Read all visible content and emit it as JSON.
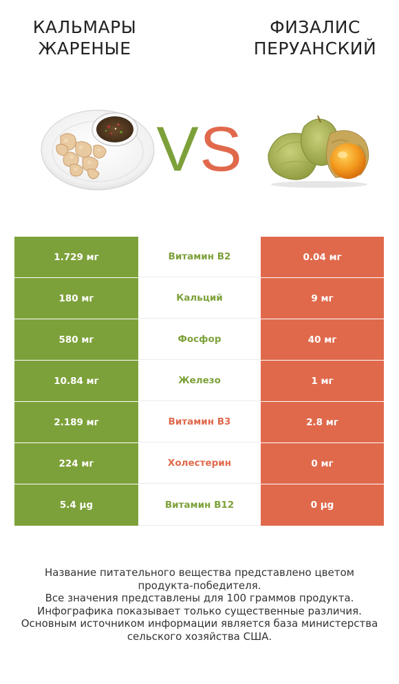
{
  "left_food": {
    "title_lines": [
      "КАЛЬМАРЫ",
      "ЖАРЕНЫЕ"
    ],
    "image_icon": "fried-squid-plate-icon"
  },
  "right_food": {
    "title_lines": [
      "ФИЗАЛИС",
      "ПЕРУАНСКИЙ"
    ],
    "image_icon": "physalis-fruit-icon"
  },
  "vs": {
    "v": "V",
    "s": "S",
    "v_color": "#7da13a",
    "s_color": "#e0694c"
  },
  "colors": {
    "left_winner": "#7da13a",
    "right_winner": "#e0694c"
  },
  "rows": [
    {
      "left": "1.729 мг",
      "name": "Витамин B2",
      "right": "0.04 мг",
      "winner": "left"
    },
    {
      "left": "180 мг",
      "name": "Кальций",
      "right": "9 мг",
      "winner": "left"
    },
    {
      "left": "580 мг",
      "name": "Фосфор",
      "right": "40 мг",
      "winner": "left"
    },
    {
      "left": "10.84 мг",
      "name": "Железо",
      "right": "1 мг",
      "winner": "left"
    },
    {
      "left": "2.189 мг",
      "name": "Витамин B3",
      "right": "2.8 мг",
      "winner": "right"
    },
    {
      "left": "224 мг",
      "name": "Холестерин",
      "right": "0 мг",
      "winner": "right"
    },
    {
      "left": "5.4 µg",
      "name": "Витамин B12",
      "right": "0 µg",
      "winner": "left"
    }
  ],
  "footer": {
    "lines": [
      "Название питательного вещества представлено цветом",
      "продукта-победителя.",
      "Все значения представлены для 100 граммов продукта.",
      "Инфографика показывает только существенные различия.",
      "Основным источником информации является база министерства",
      "сельского хозяйства США."
    ]
  }
}
